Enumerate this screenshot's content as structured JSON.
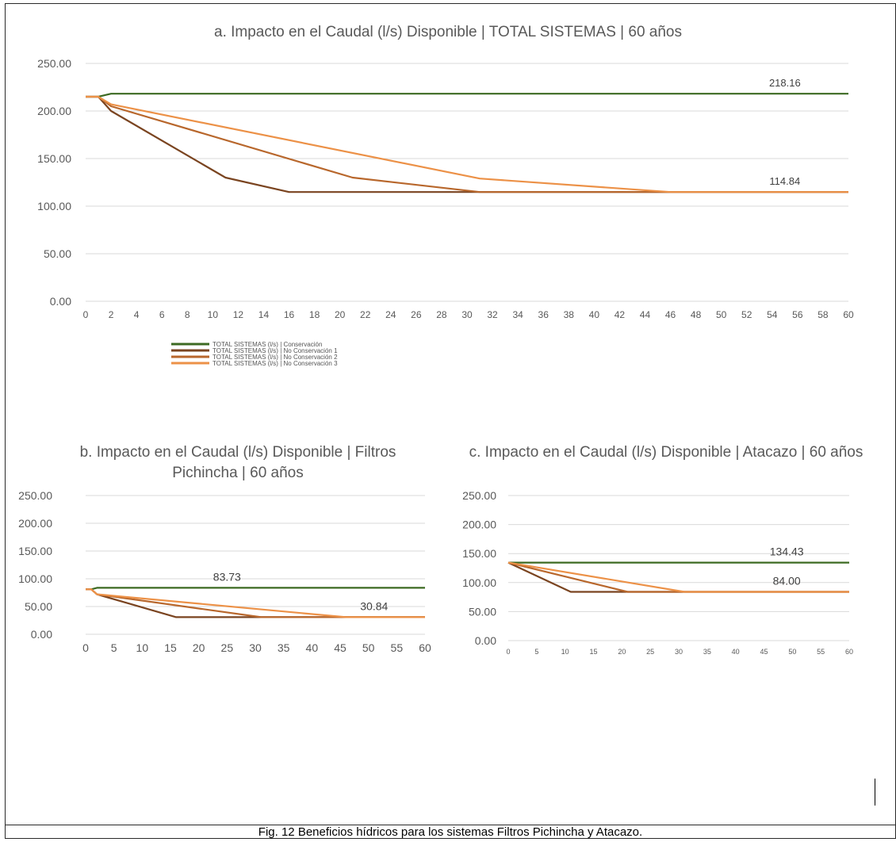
{
  "caption": "Fig. 12 Beneficios hídricos para los sistemas Filtros Pichincha y Atacazo.",
  "colors": {
    "conservacion": "#3c6a22",
    "no_conservacion_1": "#7a4420",
    "no_conservacion_2": "#b8672c",
    "no_conservacion_3": "#ec9147",
    "grid": "#d9d9d9",
    "axis_text": "#595959"
  },
  "chart_data": [
    {
      "type": "line",
      "title": "a. Impacto en el Caudal (l/s) Disponible | TOTAL SISTEMAS | 60 años",
      "xlim": [
        0,
        60
      ],
      "ylim": [
        0,
        250
      ],
      "x_ticks": [
        "0",
        "2",
        "4",
        "6",
        "8",
        "10",
        "12",
        "14",
        "16",
        "18",
        "20",
        "22",
        "24",
        "26",
        "28",
        "30",
        "32",
        "34",
        "36",
        "38",
        "40",
        "42",
        "44",
        "46",
        "48",
        "50",
        "52",
        "54",
        "56",
        "58",
        "60"
      ],
      "y_ticks": [
        "0.00",
        "50.00",
        "100.00",
        "150.00",
        "200.00",
        "250.00"
      ],
      "grid": true,
      "legend_position": "bottom-left",
      "series": [
        {
          "name": "TOTAL SISTEMAS (l/s) | Conservación",
          "color_key": "conservacion",
          "points": [
            [
              0,
              215
            ],
            [
              1,
              215
            ],
            [
              2,
              218.16
            ],
            [
              60,
              218.16
            ]
          ]
        },
        {
          "name": "TOTAL SISTEMAS (l/s) | No Conservación 1",
          "color_key": "no_conservacion_1",
          "points": [
            [
              0,
              215
            ],
            [
              1,
              215
            ],
            [
              2,
              200
            ],
            [
              11,
              130
            ],
            [
              16,
              114.84
            ],
            [
              60,
              114.84
            ]
          ]
        },
        {
          "name": "TOTAL SISTEMAS (l/s) | No Conservación 2",
          "color_key": "no_conservacion_2",
          "points": [
            [
              0,
              215
            ],
            [
              1,
              215
            ],
            [
              2,
              205
            ],
            [
              21,
              130
            ],
            [
              31,
              114.84
            ],
            [
              60,
              114.84
            ]
          ]
        },
        {
          "name": "TOTAL SISTEMAS (l/s) | No Conservación 3",
          "color_key": "no_conservacion_3",
          "points": [
            [
              0,
              215
            ],
            [
              1,
              215
            ],
            [
              2,
              207
            ],
            [
              31,
              129
            ],
            [
              46,
              114.84
            ],
            [
              60,
              114.84
            ]
          ]
        }
      ],
      "annotations": [
        {
          "text": "218.16",
          "x": 55,
          "y": 218.16
        },
        {
          "text": "114.84",
          "x": 55,
          "y": 114.84
        }
      ]
    },
    {
      "type": "line",
      "title": "b. Impacto en el Caudal (l/s) Disponible | Filtros Pichincha | 60 años",
      "xlim": [
        0,
        60
      ],
      "ylim": [
        0,
        250
      ],
      "x_ticks": [
        "0",
        "5",
        "10",
        "15",
        "20",
        "25",
        "30",
        "35",
        "40",
        "45",
        "50",
        "55",
        "60"
      ],
      "y_ticks": [
        "0.00",
        "50.00",
        "100.00",
        "150.00",
        "200.00",
        "250.00"
      ],
      "grid": true,
      "series": [
        {
          "color_key": "conservacion",
          "points": [
            [
              0,
              81
            ],
            [
              1,
              81
            ],
            [
              2,
              83.73
            ],
            [
              60,
              83.73
            ]
          ]
        },
        {
          "color_key": "no_conservacion_1",
          "points": [
            [
              0,
              81
            ],
            [
              1,
              81
            ],
            [
              2,
              72
            ],
            [
              16,
              30.84
            ],
            [
              60,
              30.84
            ]
          ]
        },
        {
          "color_key": "no_conservacion_2",
          "points": [
            [
              0,
              81
            ],
            [
              1,
              81
            ],
            [
              2,
              72
            ],
            [
              31,
              30.84
            ],
            [
              60,
              30.84
            ]
          ]
        },
        {
          "color_key": "no_conservacion_3",
          "points": [
            [
              0,
              81
            ],
            [
              1,
              81
            ],
            [
              2,
              72
            ],
            [
              46,
              30.84
            ],
            [
              60,
              30.84
            ]
          ]
        }
      ],
      "annotations": [
        {
          "text": "83.73",
          "x": 25,
          "y": 83.73
        },
        {
          "text": "30.84",
          "x": 51,
          "y": 30.84
        }
      ]
    },
    {
      "type": "line",
      "title": "c. Impacto en el Caudal (l/s) Disponible | Atacazo | 60 años",
      "xlim": [
        0,
        60
      ],
      "ylim": [
        0,
        250
      ],
      "x_ticks": [
        "0",
        "5",
        "10",
        "15",
        "20",
        "25",
        "30",
        "35",
        "40",
        "45",
        "50",
        "55",
        "60"
      ],
      "y_ticks": [
        "0.00",
        "50.00",
        "100.00",
        "150.00",
        "200.00",
        "250.00"
      ],
      "grid": true,
      "series": [
        {
          "color_key": "conservacion",
          "points": [
            [
              0,
              134.43
            ],
            [
              60,
              134.43
            ]
          ]
        },
        {
          "color_key": "no_conservacion_1",
          "points": [
            [
              0,
              134.43
            ],
            [
              11,
              84
            ],
            [
              60,
              84
            ]
          ]
        },
        {
          "color_key": "no_conservacion_2",
          "points": [
            [
              0,
              134.43
            ],
            [
              21,
              84
            ],
            [
              60,
              84
            ]
          ]
        },
        {
          "color_key": "no_conservacion_3",
          "points": [
            [
              0,
              134.43
            ],
            [
              31,
              84
            ],
            [
              60,
              84
            ]
          ]
        }
      ],
      "annotations": [
        {
          "text": "134.43",
          "x": 49,
          "y": 134.43
        },
        {
          "text": "84.00",
          "x": 49,
          "y": 84
        }
      ]
    }
  ]
}
